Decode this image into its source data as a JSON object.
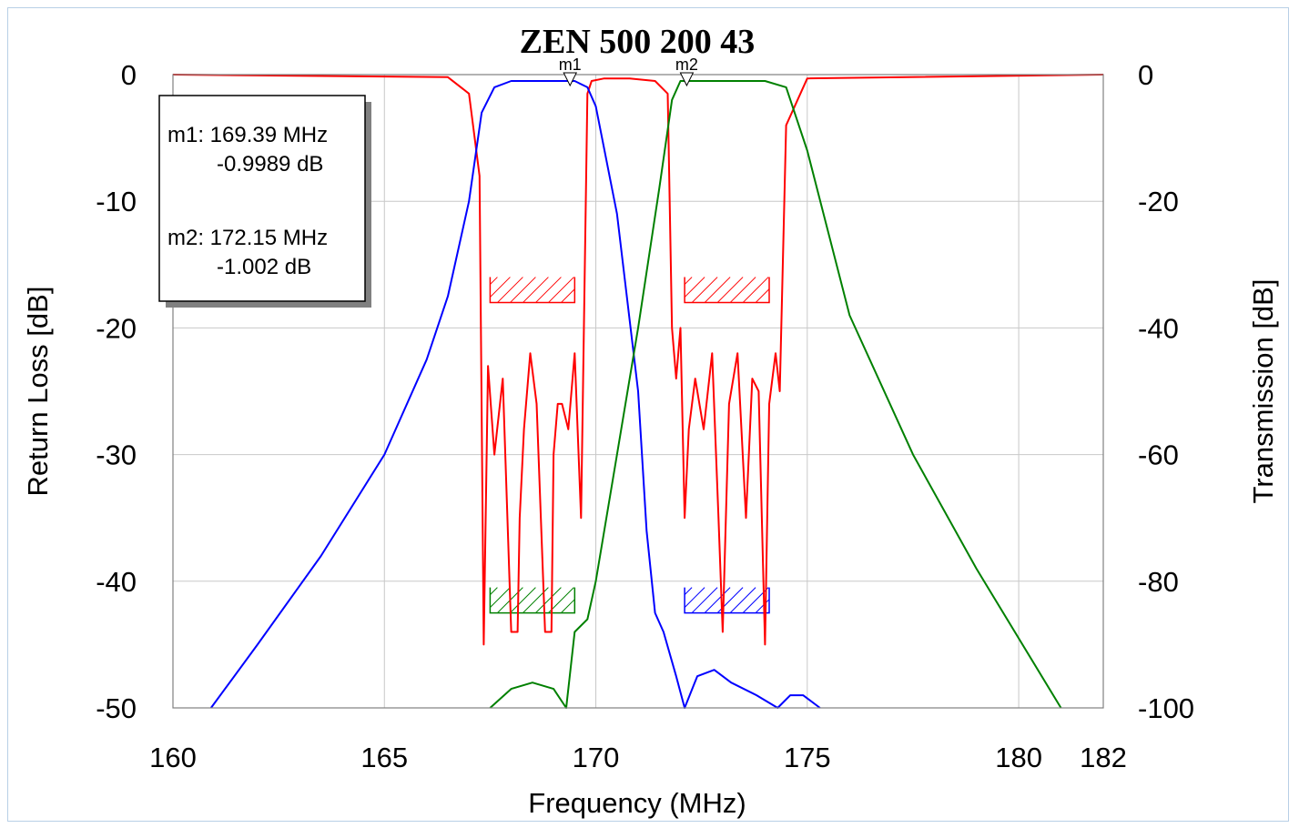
{
  "chart_data": {
    "type": "line",
    "title": "ZEN 500 200 43",
    "xlabel": "Frequency (MHz)",
    "ylabel_left": "Return Loss [dB]",
    "ylabel_right": "Transmission [dB]",
    "xlim": [
      160,
      182
    ],
    "ylim_left": [
      -50,
      0
    ],
    "ylim_right": [
      -100,
      0
    ],
    "x_ticks": [
      "160",
      "165",
      "170",
      "175",
      "180",
      "182"
    ],
    "x_tick_values": [
      160,
      165,
      170,
      175,
      180,
      182
    ],
    "y_left_ticks": [
      "0",
      "-10",
      "-20",
      "-30",
      "-40",
      "-50"
    ],
    "y_left_tick_values": [
      0,
      -10,
      -20,
      -30,
      -40,
      -50
    ],
    "y_right_ticks": [
      "0",
      "-20",
      "-40",
      "-60",
      "-80",
      "-100"
    ],
    "y_right_tick_values": [
      0,
      -20,
      -40,
      -60,
      -80,
      -100
    ],
    "grid": true,
    "colors": {
      "return_loss": "#ff0000",
      "transmission_1": "#0000ff",
      "transmission_2": "#008000"
    },
    "series": [
      {
        "axis": "left",
        "color": "#ff0000",
        "x": [
          160,
          166.5,
          167.0,
          167.25,
          167.35,
          167.45,
          167.6,
          167.8,
          168.0,
          168.15,
          168.2,
          168.3,
          168.45,
          168.6,
          168.8,
          168.95,
          169.0,
          169.1,
          169.2,
          169.35,
          169.5,
          169.65,
          169.7,
          169.8,
          169.9,
          170.2,
          170.8,
          171.4,
          171.7,
          171.8,
          171.9,
          172.0,
          172.1,
          172.2,
          172.35,
          172.55,
          172.75,
          172.9,
          173.0,
          173.15,
          173.35,
          173.55,
          173.7,
          173.85,
          174.0,
          174.1,
          174.25,
          174.35,
          174.5,
          175,
          182
        ],
        "y": [
          0,
          -0.2,
          -1.5,
          -8,
          -45,
          -23,
          -30,
          -24,
          -44,
          -44,
          -35,
          -28,
          -22,
          -26,
          -44,
          -44,
          -30,
          -26,
          -26,
          -28,
          -22,
          -35,
          -24,
          -1.5,
          -0.5,
          -0.3,
          -0.3,
          -0.5,
          -1.5,
          -20,
          -24,
          -20,
          -35,
          -28,
          -24,
          -28,
          -22,
          -35,
          -44,
          -26,
          -22,
          -35,
          -24,
          -25,
          -45,
          -26,
          -22,
          -25,
          -4,
          -0.3,
          0
        ]
      },
      {
        "axis": "right",
        "color": "#0000ff",
        "x": [
          160.9,
          162,
          163.5,
          165,
          166,
          166.5,
          167,
          167.3,
          167.6,
          168,
          169,
          169.5,
          169.8,
          170,
          170.5,
          171,
          171.2,
          171.4,
          171.6,
          171.9,
          172.1,
          172.4,
          172.8,
          173.2,
          173.8,
          174.3,
          174.6,
          174.9,
          175.3
        ],
        "y": [
          -100,
          -90,
          -76,
          -60,
          -45,
          -35,
          -20,
          -6,
          -2,
          -1,
          -1,
          -1,
          -2,
          -5,
          -22,
          -50,
          -72,
          -85,
          -88,
          -95,
          -100,
          -95,
          -94,
          -96,
          -98,
          -100,
          -98,
          -98,
          -100
        ]
      },
      {
        "axis": "right",
        "color": "#008000",
        "x": [
          167.5,
          168,
          168.5,
          169,
          169.3,
          169.5,
          169.8,
          170,
          170.5,
          171,
          171.5,
          171.8,
          172,
          173,
          174,
          174.5,
          175,
          176,
          177.5,
          179,
          181
        ],
        "y": [
          -100,
          -97,
          -96,
          -97,
          -100,
          -88,
          -86,
          -80,
          -60,
          -40,
          -18,
          -4,
          -1,
          -1,
          -1,
          -2,
          -12,
          -38,
          -60,
          -78,
          -100
        ]
      }
    ],
    "masks": [
      {
        "color": "#ff0000",
        "x": [
          167.5,
          169.5
        ],
        "y_left": -18.0
      },
      {
        "color": "#ff0000",
        "x": [
          172.1,
          174.1
        ],
        "y_left": -18.0
      },
      {
        "color": "#008000",
        "x": [
          167.5,
          169.5
        ],
        "y_left": -42.5
      },
      {
        "color": "#0000ff",
        "x": [
          172.1,
          174.1
        ],
        "y_left": -42.5
      }
    ],
    "markers": [
      {
        "label": "m1",
        "x": 169.39,
        "y_left": -0.5
      },
      {
        "label": "m2",
        "x": 172.15,
        "y_left": -0.5
      }
    ],
    "legend": {
      "m1_line1": "m1: 169.39 MHz",
      "m1_line2": "-0.9989 dB",
      "m2_line1": "m2: 172.15 MHz",
      "m2_line2": "-1.002 dB"
    }
  }
}
